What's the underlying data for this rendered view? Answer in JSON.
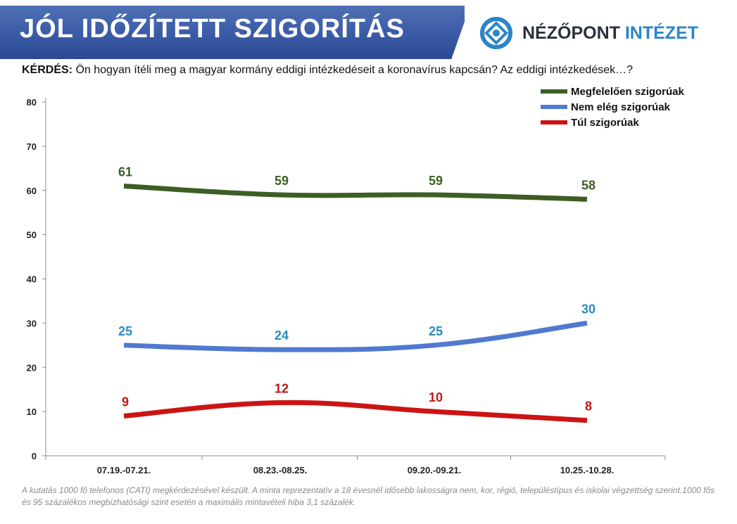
{
  "header": {
    "title": "JÓL IDŐZÍTETT SZIGORÍTÁS",
    "logo_name_part1": "NÉZŐPONT",
    "logo_name_part2": "INTÉZET"
  },
  "question": {
    "label": "KÉRDÉS:",
    "text": "Ön hogyan ítéli meg a magyar kormány eddigi intézkedéseit a koronavírus kapcsán? Az eddigi intézkedések…?"
  },
  "chart_data": {
    "type": "line",
    "categories": [
      "07.19.-07.21.",
      "08.23.-08.25.",
      "09.20.-09.21.",
      "10.25.-10.28."
    ],
    "ylim": [
      0,
      80
    ],
    "yticks": [
      0,
      10,
      20,
      30,
      40,
      50,
      60,
      70,
      80
    ],
    "grid": false,
    "legend_position": "top-right",
    "smooth": true,
    "series": [
      {
        "name": "Megfelelően szigorúak",
        "values": [
          61,
          59,
          59,
          58
        ],
        "color": "#3d5e24",
        "label_color": "#3d5e24"
      },
      {
        "name": "Nem elég szigorúak",
        "values": [
          25,
          24,
          25,
          30
        ],
        "color": "#4f7ad0",
        "label_color": "#2a8bbf"
      },
      {
        "name": "Túl szigorúak",
        "values": [
          9,
          12,
          10,
          8
        ],
        "color": "#cc1414",
        "label_color": "#c41616"
      }
    ]
  },
  "footnote": "A kutatás 1000 fő telefonos (CATI) megkérdezésével készült. A minta reprezentatív a 18 évesnél idősebb lakosságra nem, kor, régió, településtípus és iskolai végzettség szerint.1000 fős és 95 százalékos megbízhatósági szint esetén a maximális mintavételi hiba 3,1 százalék.",
  "colors": {
    "header_blue": "#3a5aa6",
    "logo_blue": "#2a86c6",
    "logo_dark": "#2a2f3a"
  }
}
